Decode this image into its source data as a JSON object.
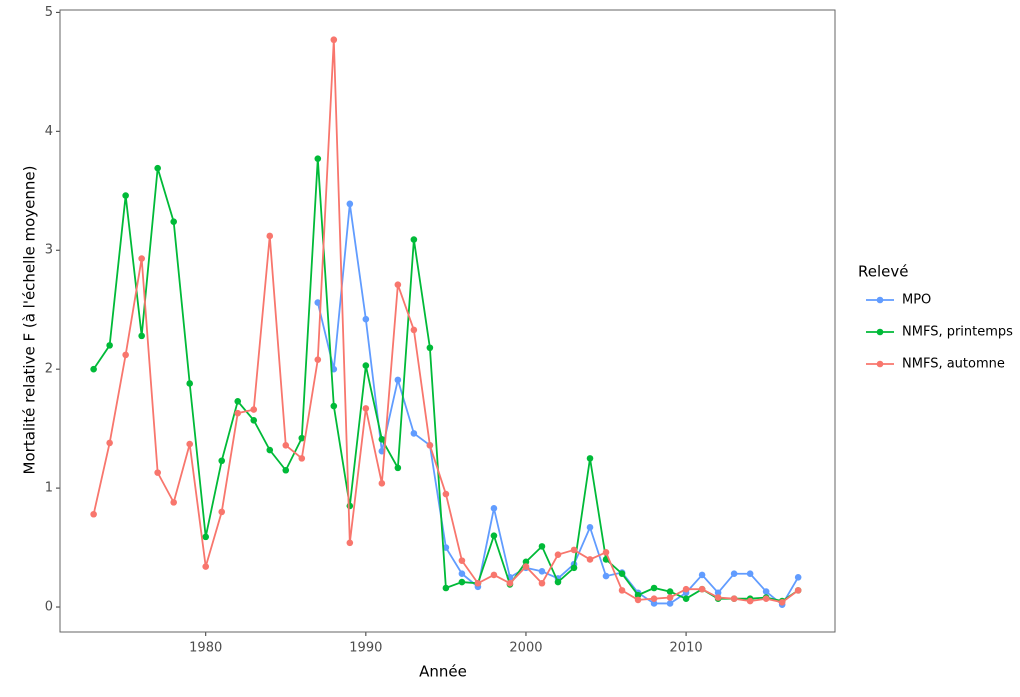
{
  "chart_data": {
    "type": "line",
    "xlabel": "Année",
    "ylabel": "Mortalité relative F (à l'échelle moyenne)",
    "legend_title": "Relevé",
    "x": [
      1973,
      1974,
      1975,
      1976,
      1977,
      1978,
      1979,
      1980,
      1981,
      1982,
      1983,
      1984,
      1985,
      1986,
      1987,
      1988,
      1989,
      1990,
      1991,
      1992,
      1993,
      1994,
      1995,
      1996,
      1997,
      1998,
      1999,
      2000,
      2001,
      2002,
      2003,
      2004,
      2005,
      2006,
      2007,
      2008,
      2009,
      2010,
      2011,
      2012,
      2013,
      2014,
      2015,
      2016,
      2017
    ],
    "series": [
      {
        "name": "MPO",
        "color": "#619cff",
        "values": [
          null,
          null,
          null,
          null,
          null,
          null,
          null,
          null,
          null,
          null,
          null,
          null,
          null,
          null,
          2.56,
          2.0,
          3.39,
          2.42,
          1.31,
          1.91,
          1.46,
          1.36,
          0.5,
          0.28,
          0.17,
          0.83,
          0.25,
          0.33,
          0.3,
          0.24,
          0.36,
          0.67,
          0.26,
          0.29,
          0.12,
          0.03,
          0.03,
          0.12,
          0.27,
          0.12,
          0.28,
          0.28,
          0.13,
          0.02,
          0.25
        ]
      },
      {
        "name": "NMFS, printemps",
        "color": "#00ba38",
        "values": [
          2.0,
          2.2,
          3.46,
          2.28,
          3.69,
          3.24,
          1.88,
          0.59,
          1.23,
          1.73,
          1.57,
          1.32,
          1.15,
          1.42,
          3.77,
          1.69,
          0.85,
          2.03,
          1.41,
          1.17,
          3.09,
          2.18,
          0.16,
          0.21,
          0.2,
          0.6,
          0.19,
          0.38,
          0.51,
          0.21,
          0.33,
          1.25,
          0.4,
          0.28,
          0.1,
          0.16,
          0.13,
          0.07,
          0.15,
          0.07,
          0.07,
          0.07,
          0.08,
          0.05,
          0.14
        ]
      },
      {
        "name": "NMFS, automne",
        "color": "#f8766d",
        "values": [
          0.78,
          1.38,
          2.12,
          2.93,
          1.13,
          0.88,
          1.37,
          0.34,
          0.8,
          1.63,
          1.66,
          3.12,
          1.36,
          1.25,
          2.08,
          4.77,
          0.54,
          1.67,
          1.04,
          2.71,
          2.33,
          1.36,
          0.95,
          0.39,
          0.2,
          0.27,
          0.2,
          0.34,
          0.2,
          0.44,
          0.48,
          0.4,
          0.46,
          0.14,
          0.06,
          0.07,
          0.08,
          0.15,
          0.15,
          0.08,
          0.07,
          0.05,
          0.07,
          0.04,
          0.14
        ]
      }
    ],
    "xlim": [
      1970.9,
      2019.3
    ],
    "ylim": [
      -0.21,
      5.02
    ],
    "xticks": [
      1980,
      1990,
      2000,
      2010
    ],
    "yticks": [
      0,
      1,
      2,
      3,
      4,
      5
    ],
    "grid": true
  }
}
